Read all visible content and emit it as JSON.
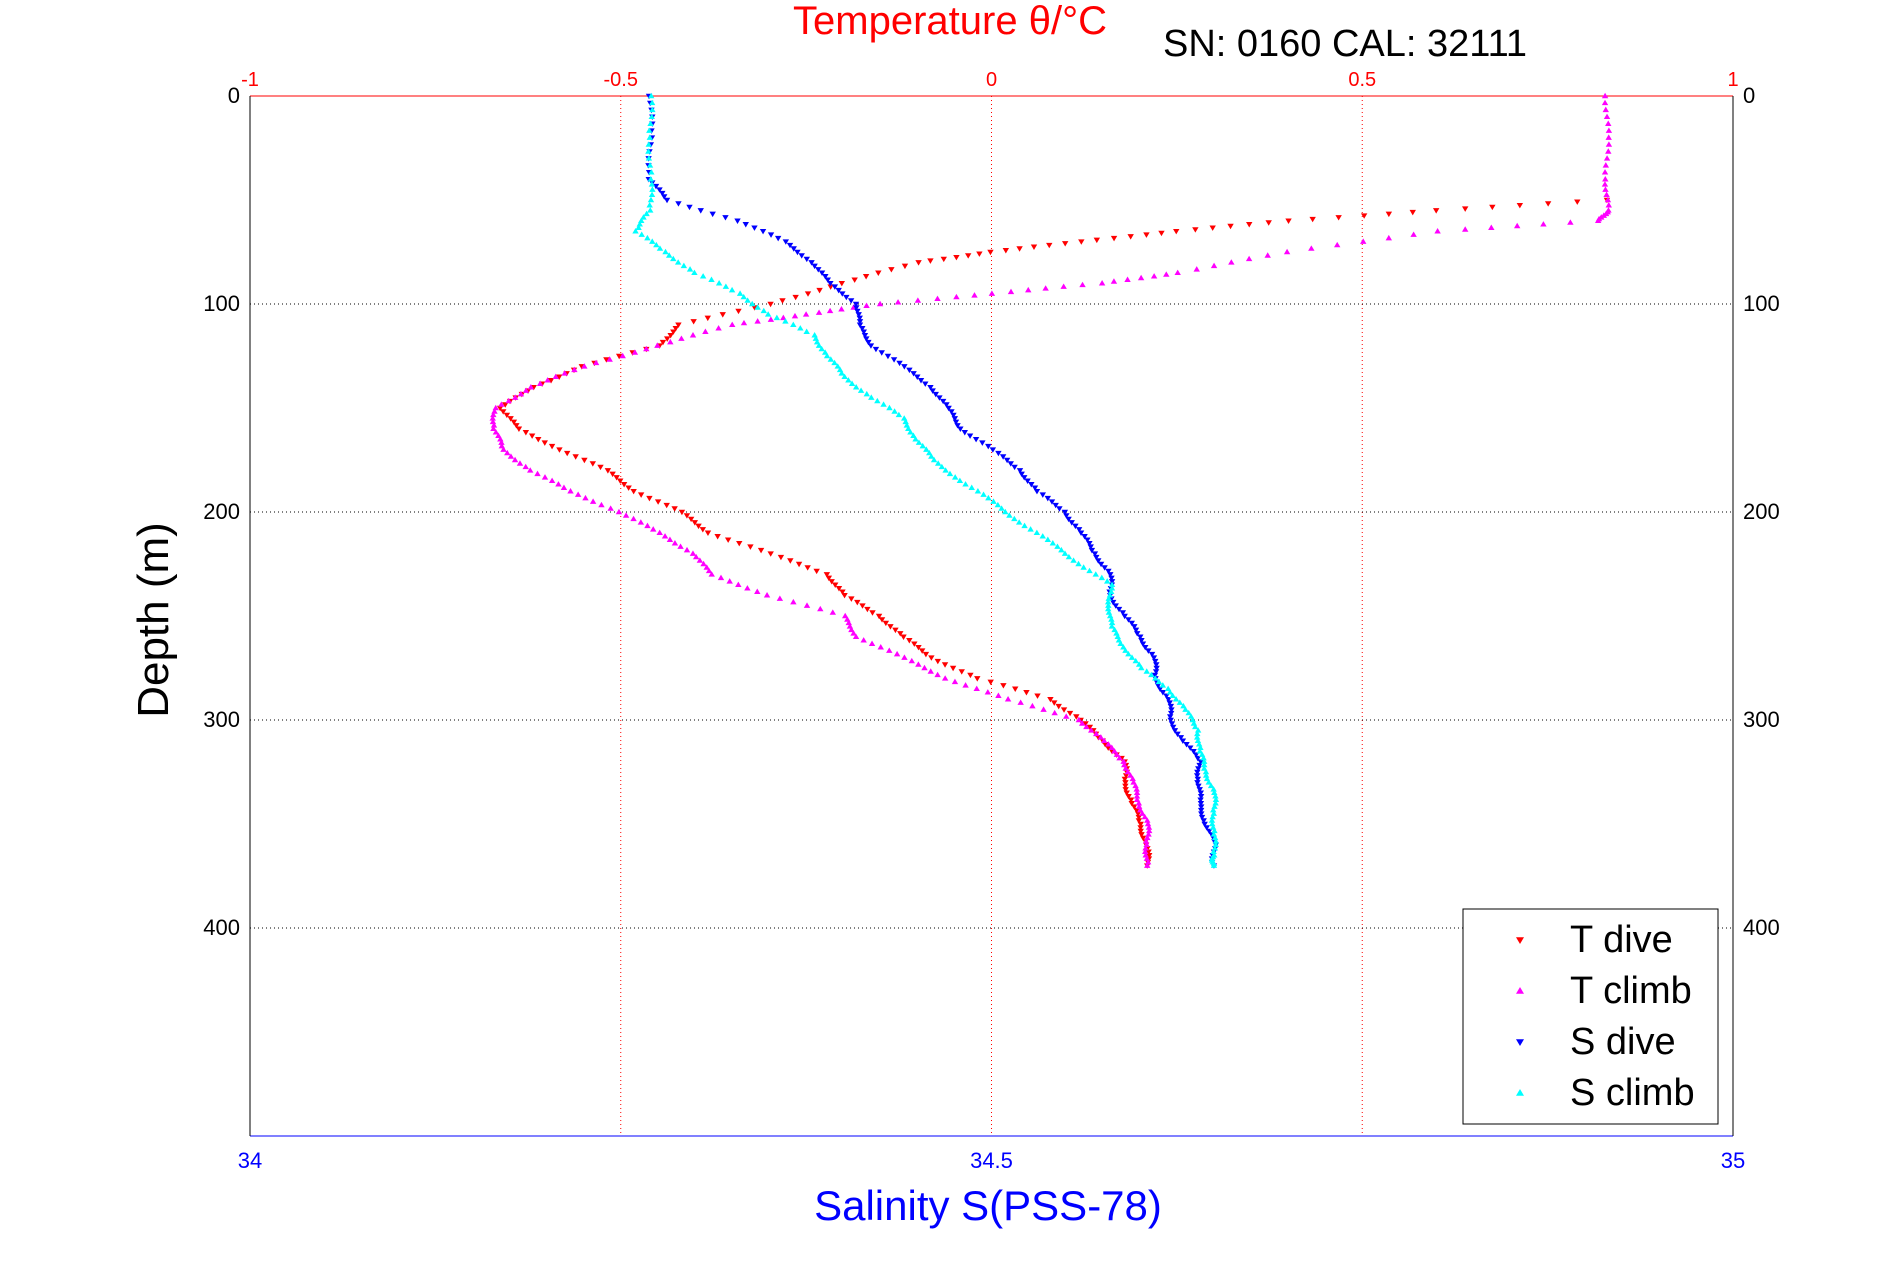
{
  "chart_data": {
    "type": "scatter",
    "title": "Temperature θ/°C",
    "annotation": "SN: 0160  CAL: 32111",
    "xlabel_bottom": "Salinity S(PSS-78)",
    "ylabel": "Depth (m)",
    "top_axis": {
      "range": [
        -1,
        1
      ],
      "ticks": [
        "-1",
        "-0.5",
        "0",
        "0.5",
        "1"
      ],
      "color": "#ff0000"
    },
    "bottom_axis": {
      "range": [
        34,
        35
      ],
      "ticks": [
        "34",
        "34.5",
        "35"
      ],
      "color": "#0000ff"
    },
    "y_axis": {
      "range": [
        0,
        500
      ],
      "reversed": true,
      "ticks": [
        "0",
        "100",
        "200",
        "300",
        "400"
      ]
    },
    "grid": true,
    "legend_position": "bottom-right",
    "series": [
      {
        "name": "T dive",
        "axis": "top",
        "color": "#ff0000",
        "marker": "triangle-down",
        "points": [
          [
            0.83,
            50
          ],
          [
            0.6,
            55
          ],
          [
            0.4,
            60
          ],
          [
            0.25,
            65
          ],
          [
            0.12,
            70
          ],
          [
            0,
            75
          ],
          [
            -0.1,
            80
          ],
          [
            -0.2,
            90
          ],
          [
            -0.3,
            100
          ],
          [
            -0.42,
            110
          ],
          [
            -0.45,
            120
          ],
          [
            -0.55,
            130
          ],
          [
            -0.62,
            140
          ],
          [
            -0.66,
            150
          ],
          [
            -0.64,
            160
          ],
          [
            -0.58,
            170
          ],
          [
            -0.52,
            180
          ],
          [
            -0.48,
            190
          ],
          [
            -0.42,
            200
          ],
          [
            -0.38,
            210
          ],
          [
            -0.3,
            220
          ],
          [
            -0.22,
            230
          ],
          [
            -0.2,
            240
          ],
          [
            -0.15,
            250
          ],
          [
            -0.12,
            260
          ],
          [
            -0.08,
            270
          ],
          [
            -0.02,
            280
          ],
          [
            0.08,
            290
          ],
          [
            0.12,
            300
          ],
          [
            0.15,
            310
          ],
          [
            0.18,
            320
          ],
          [
            0.18,
            330
          ],
          [
            0.19,
            340
          ],
          [
            0.2,
            350
          ],
          [
            0.21,
            360
          ],
          [
            0.21,
            370
          ]
        ]
      },
      {
        "name": "T climb",
        "axis": "top",
        "color": "#ff00ff",
        "marker": "triangle-up",
        "points": [
          [
            0.83,
            0
          ],
          [
            0.83,
            20
          ],
          [
            0.83,
            40
          ],
          [
            0.83,
            55
          ],
          [
            0.82,
            60
          ],
          [
            0.6,
            65
          ],
          [
            0.4,
            75
          ],
          [
            0.25,
            85
          ],
          [
            0.15,
            90
          ],
          [
            0,
            95
          ],
          [
            -0.15,
            100
          ],
          [
            -0.25,
            105
          ],
          [
            -0.35,
            110
          ],
          [
            -0.45,
            120
          ],
          [
            -0.55,
            130
          ],
          [
            -0.62,
            140
          ],
          [
            -0.67,
            150
          ],
          [
            -0.67,
            160
          ],
          [
            -0.66,
            170
          ],
          [
            -0.62,
            180
          ],
          [
            -0.57,
            190
          ],
          [
            -0.5,
            200
          ],
          [
            -0.45,
            210
          ],
          [
            -0.4,
            220
          ],
          [
            -0.38,
            230
          ],
          [
            -0.3,
            240
          ],
          [
            -0.2,
            250
          ],
          [
            -0.18,
            260
          ],
          [
            -0.12,
            270
          ],
          [
            -0.06,
            280
          ],
          [
            0.02,
            290
          ],
          [
            0.12,
            300
          ],
          [
            0.15,
            310
          ],
          [
            0.18,
            320
          ],
          [
            0.19,
            330
          ],
          [
            0.2,
            340
          ],
          [
            0.21,
            350
          ],
          [
            0.21,
            360
          ],
          [
            0.21,
            370
          ]
        ]
      },
      {
        "name": "S dive",
        "axis": "bottom",
        "color": "#0000ff",
        "marker": "triangle-down",
        "points": [
          [
            34.27,
            0
          ],
          [
            34.27,
            20
          ],
          [
            34.27,
            40
          ],
          [
            34.28,
            50
          ],
          [
            34.33,
            60
          ],
          [
            34.36,
            70
          ],
          [
            34.38,
            80
          ],
          [
            34.39,
            90
          ],
          [
            34.41,
            100
          ],
          [
            34.41,
            110
          ],
          [
            34.42,
            120
          ],
          [
            34.44,
            130
          ],
          [
            34.46,
            140
          ],
          [
            34.47,
            150
          ],
          [
            34.48,
            160
          ],
          [
            34.5,
            170
          ],
          [
            34.52,
            180
          ],
          [
            34.53,
            190
          ],
          [
            34.55,
            200
          ],
          [
            34.56,
            210
          ],
          [
            34.57,
            220
          ],
          [
            34.58,
            230
          ],
          [
            34.58,
            240
          ],
          [
            34.59,
            250
          ],
          [
            34.6,
            260
          ],
          [
            34.61,
            270
          ],
          [
            34.61,
            280
          ],
          [
            34.62,
            290
          ],
          [
            34.62,
            300
          ],
          [
            34.63,
            310
          ],
          [
            34.64,
            320
          ],
          [
            34.64,
            330
          ],
          [
            34.64,
            340
          ],
          [
            34.645,
            350
          ],
          [
            34.65,
            360
          ],
          [
            34.65,
            370
          ]
        ]
      },
      {
        "name": "S climb",
        "axis": "bottom",
        "color": "#00ffff",
        "marker": "triangle-up",
        "points": [
          [
            34.27,
            0
          ],
          [
            34.27,
            20
          ],
          [
            34.27,
            40
          ],
          [
            34.27,
            55
          ],
          [
            34.26,
            65
          ],
          [
            34.28,
            75
          ],
          [
            34.3,
            85
          ],
          [
            34.33,
            95
          ],
          [
            34.35,
            105
          ],
          [
            34.38,
            115
          ],
          [
            34.39,
            125
          ],
          [
            34.4,
            135
          ],
          [
            34.42,
            145
          ],
          [
            34.44,
            155
          ],
          [
            34.45,
            165
          ],
          [
            34.46,
            175
          ],
          [
            34.48,
            185
          ],
          [
            34.5,
            195
          ],
          [
            34.52,
            205
          ],
          [
            34.54,
            215
          ],
          [
            34.56,
            225
          ],
          [
            34.58,
            235
          ],
          [
            34.58,
            245
          ],
          [
            34.58,
            255
          ],
          [
            34.59,
            265
          ],
          [
            34.6,
            275
          ],
          [
            34.62,
            285
          ],
          [
            34.63,
            295
          ],
          [
            34.64,
            305
          ],
          [
            34.64,
            315
          ],
          [
            34.645,
            325
          ],
          [
            34.65,
            335
          ],
          [
            34.65,
            345
          ],
          [
            34.65,
            355
          ],
          [
            34.65,
            365
          ],
          [
            34.65,
            370
          ]
        ]
      }
    ]
  }
}
